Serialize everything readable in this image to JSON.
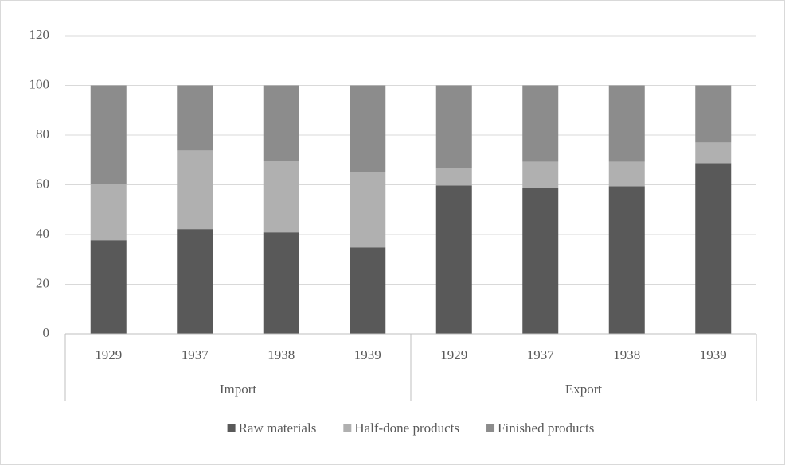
{
  "chart_data": {
    "type": "stacked_bar",
    "groups": [
      {
        "label": "Import",
        "categories": [
          "1929",
          "1937",
          "1938",
          "1939"
        ]
      },
      {
        "label": "Export",
        "categories": [
          "1929",
          "1937",
          "1938",
          "1939"
        ]
      }
    ],
    "series": [
      {
        "name": "Raw materials",
        "color": "#595959",
        "values": [
          37.7,
          42.2,
          40.9,
          34.8,
          59.7,
          58.8,
          59.4,
          68.7
        ]
      },
      {
        "name": "Half-done products",
        "color": "#b0b0b0",
        "values": [
          22.7,
          31.6,
          28.7,
          30.4,
          7.1,
          10.5,
          9.9,
          8.3
        ]
      },
      {
        "name": "Finished products",
        "color": "#8c8c8c",
        "values": [
          39.6,
          26.2,
          30.4,
          34.8,
          33.2,
          30.7,
          30.7,
          23.0
        ]
      }
    ],
    "ylim": [
      0,
      120
    ],
    "yticks": [
      0,
      20,
      40,
      60,
      80,
      100,
      120
    ],
    "grid": true,
    "legend": "bottom"
  }
}
